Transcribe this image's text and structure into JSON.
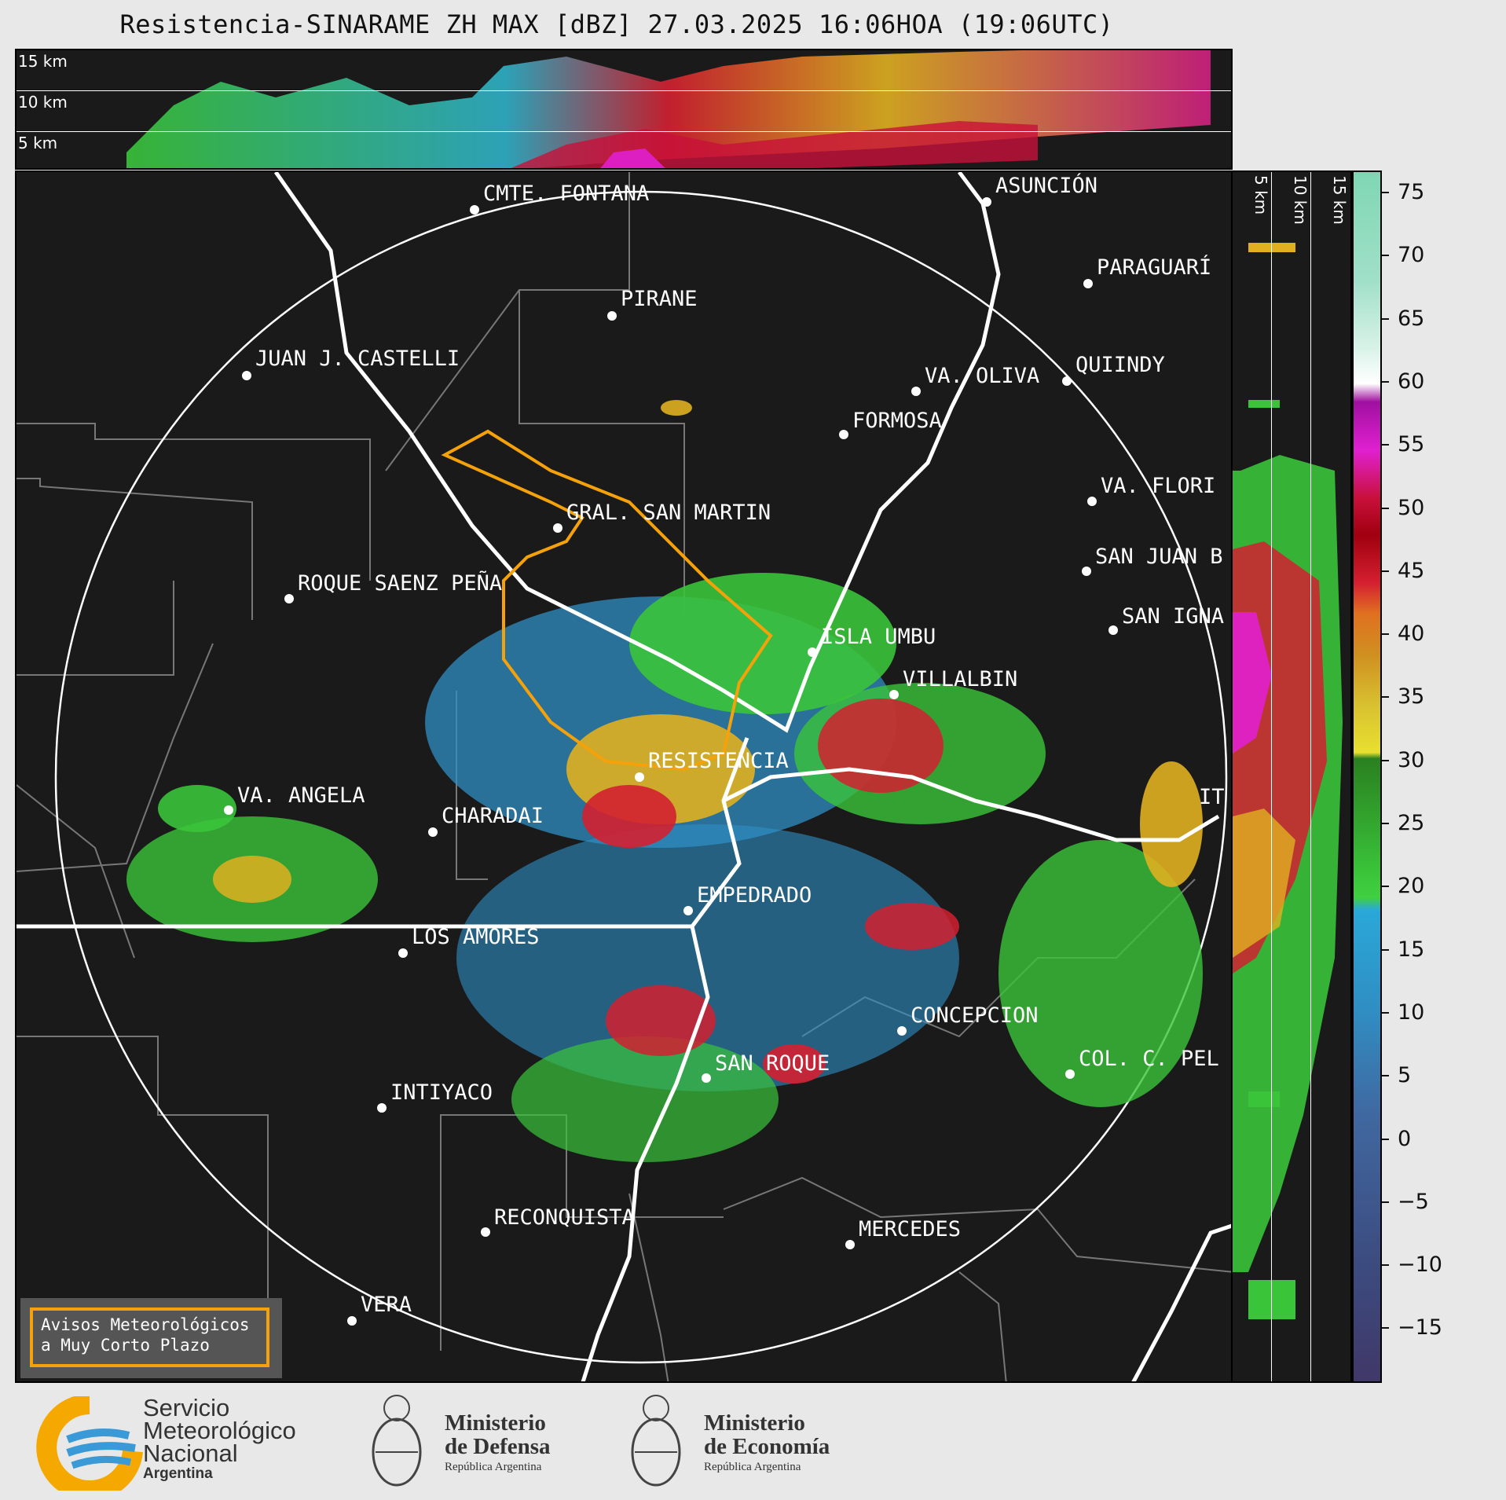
{
  "title": "Resistencia-SINARAME ZH MAX [dBZ] 27.03.2025 16:06HOA (19:06UTC)",
  "altitude_labels": [
    "15 km",
    "10 km",
    "5 km"
  ],
  "cities": [
    {
      "name": "CMTE. FONTANA"
    },
    {
      "name": "ASUNCIÓN"
    },
    {
      "name": "PARAGUARÍ"
    },
    {
      "name": "PIRANE"
    },
    {
      "name": "JUAN J. CASTELLI"
    },
    {
      "name": "VA. OLIVA"
    },
    {
      "name": "QUIINDY"
    },
    {
      "name": "FORMOSA"
    },
    {
      "name": "VA. FLORI"
    },
    {
      "name": "GRAL. SAN MARTIN"
    },
    {
      "name": "SAN JUAN B"
    },
    {
      "name": "ROQUE SAENZ PEÑA"
    },
    {
      "name": "SAN IGNA"
    },
    {
      "name": "ISLA UMBU"
    },
    {
      "name": "VILLALBIN"
    },
    {
      "name": "RESISTENCIA"
    },
    {
      "name": "IT"
    },
    {
      "name": "VA. ANGELA"
    },
    {
      "name": "CHARADAI"
    },
    {
      "name": "EMPEDRADO"
    },
    {
      "name": "LOS AMORES"
    },
    {
      "name": "CONCEPCION"
    },
    {
      "name": "SAN ROQUE"
    },
    {
      "name": "COL. C. PEL"
    },
    {
      "name": "INTIYACO"
    },
    {
      "name": "RECONQUISTA"
    },
    {
      "name": "MERCEDES"
    },
    {
      "name": "VERA"
    }
  ],
  "colorbar": {
    "ticks": [
      "75",
      "70",
      "65",
      "60",
      "55",
      "50",
      "45",
      "40",
      "35",
      "30",
      "25",
      "20",
      "15",
      "10",
      "5",
      "0",
      "−5",
      "−10",
      "−15"
    ]
  },
  "legend": {
    "line1": "Avisos Meteorológicos",
    "line2": "a Muy Corto Plazo",
    "box_color": "#f5a20a"
  },
  "footer": {
    "smn": {
      "line1": "Servicio",
      "line2": "Meteorológico",
      "line3": "Nacional",
      "line4": "Argentina"
    },
    "defensa": {
      "line1": "Ministerio",
      "line2": "de Defensa",
      "line3": "República Argentina"
    },
    "economia": {
      "line1": "Ministerio",
      "line2": "de Economía",
      "line3": "República Argentina"
    }
  }
}
